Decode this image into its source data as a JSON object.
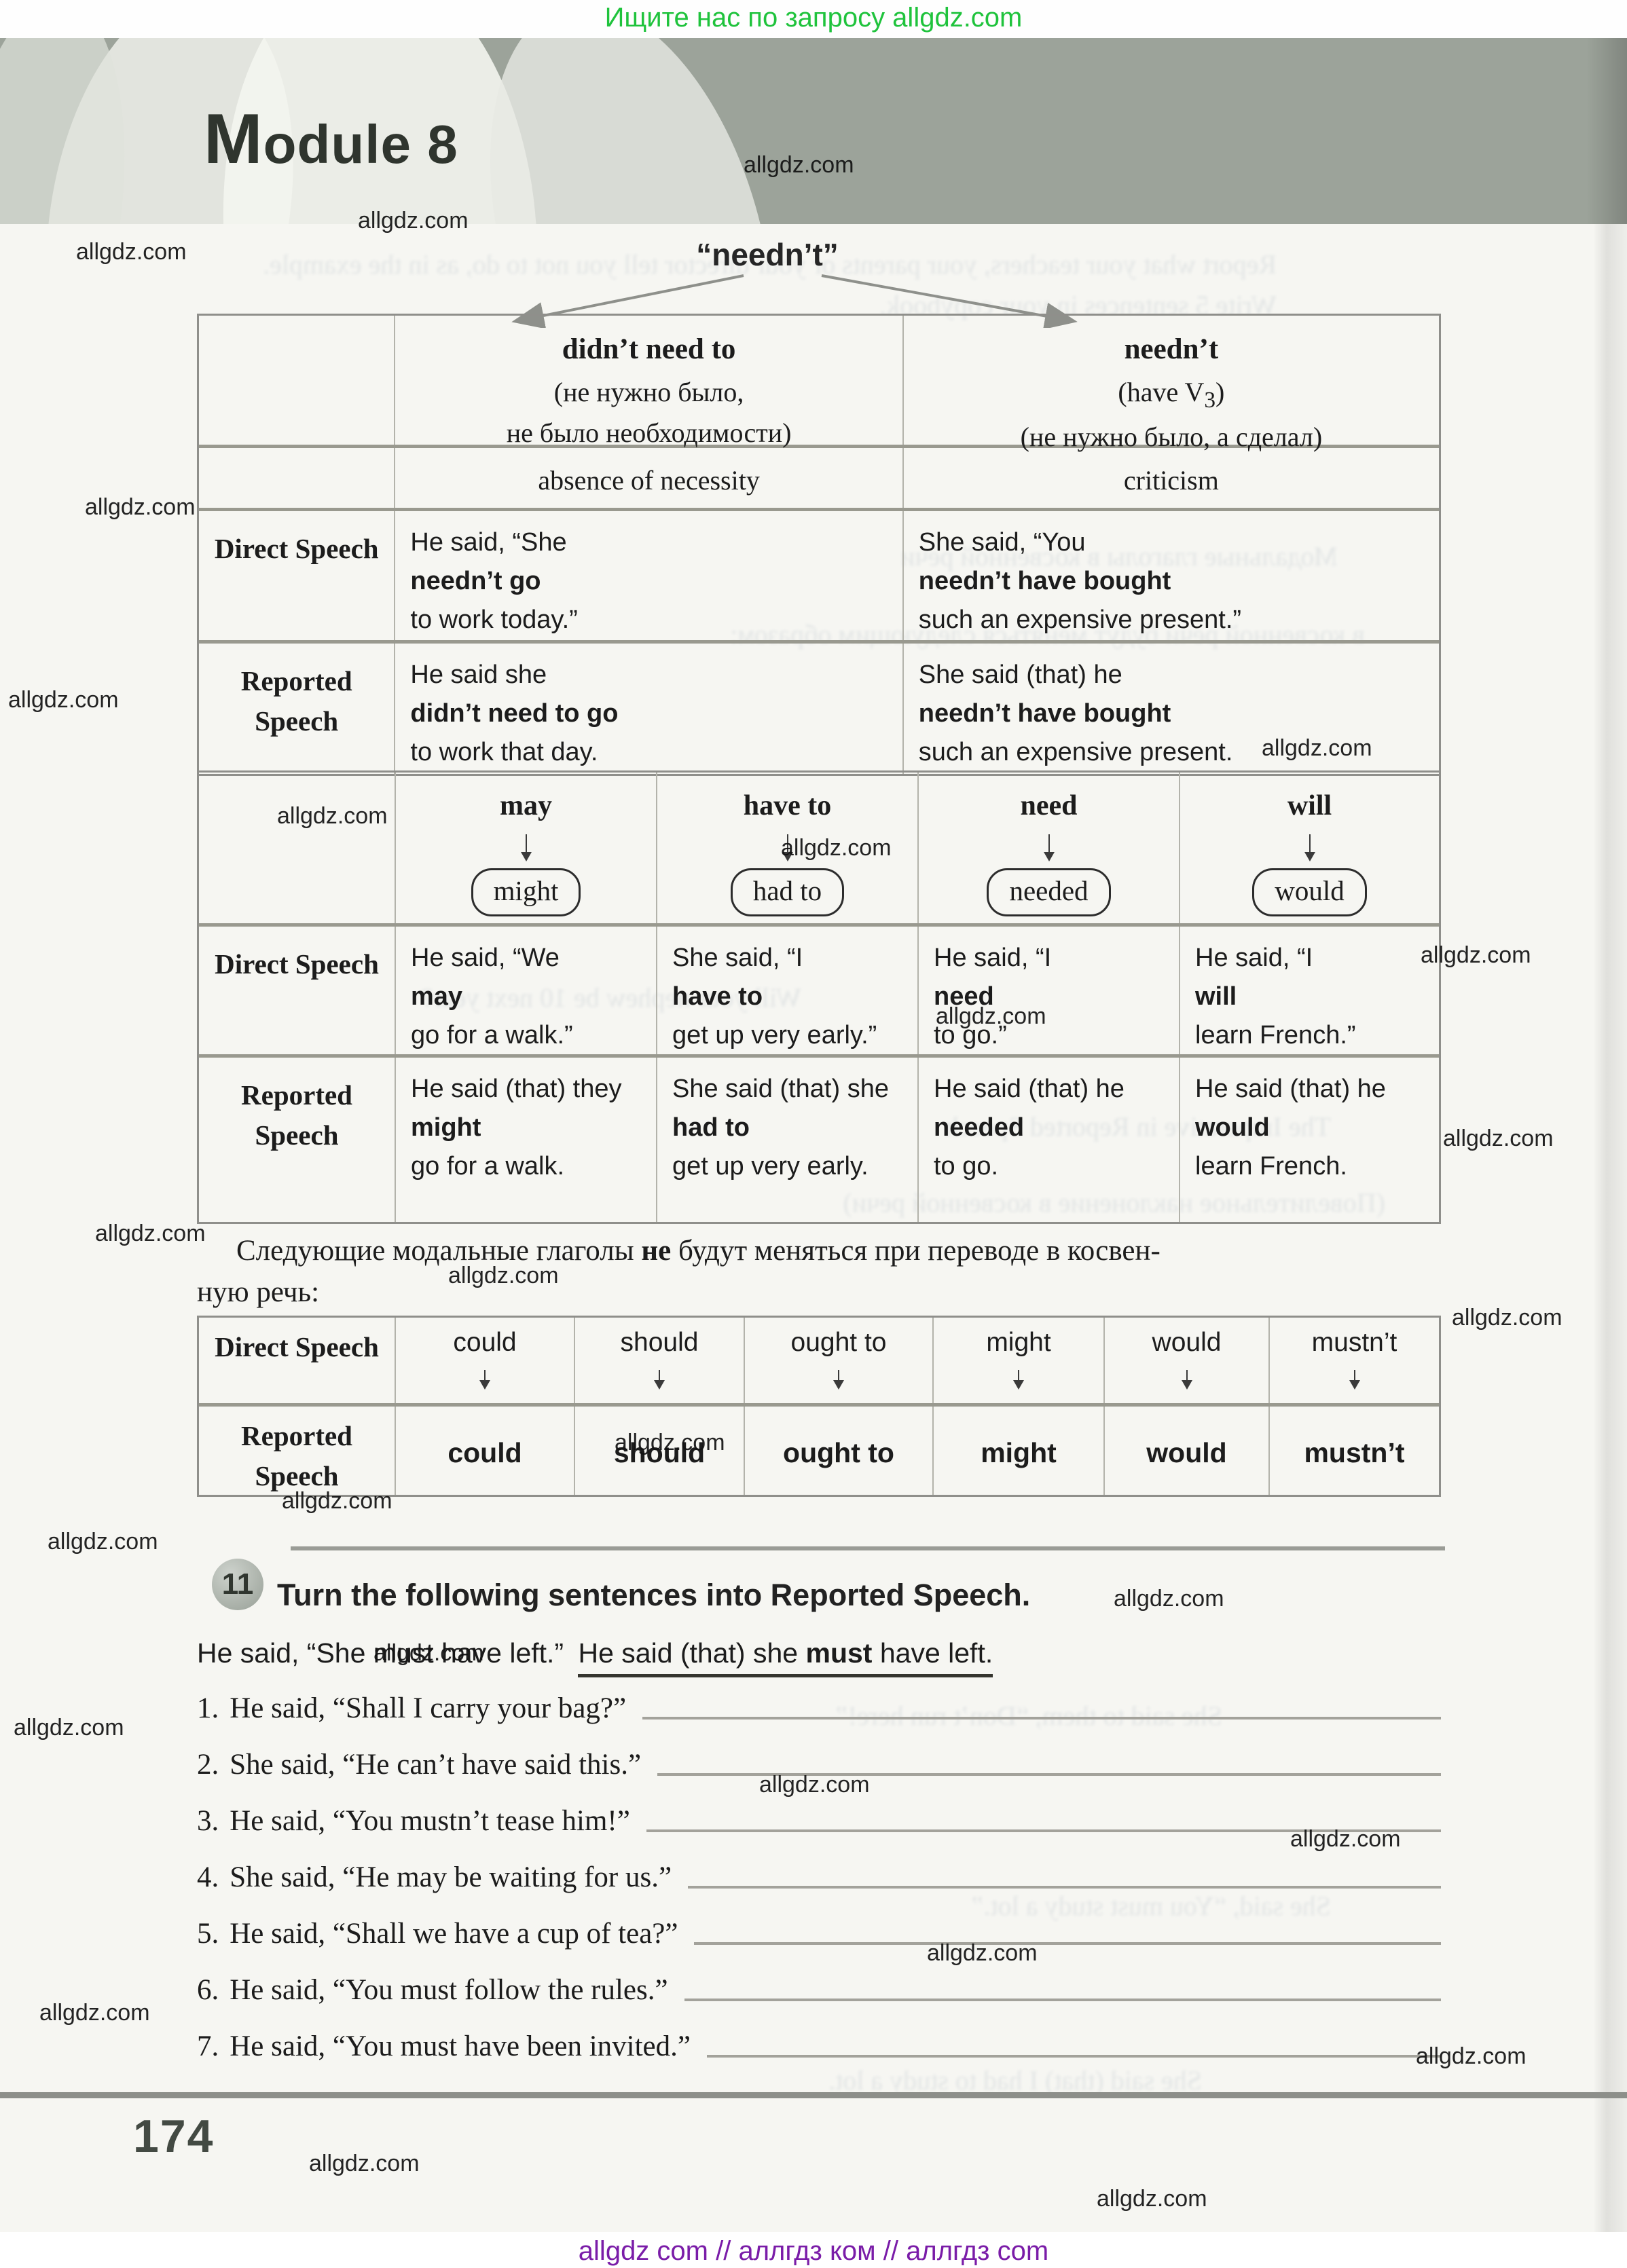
{
  "promo": {
    "top_line": "Ищите нас по запросу allgdz.com"
  },
  "watermark": {
    "label": "allgdz.com"
  },
  "header": {
    "module_title": "Module 8"
  },
  "neednt_diagram": {
    "title": "“needn’t”"
  },
  "table1": {
    "col1": {
      "title": "didn’t need to",
      "note1": "(не нужно было,",
      "note2": "не было необходимости)"
    },
    "col2": {
      "title": "needn’t",
      "have_pre": "(have V",
      "have_sub": "3",
      "have_post": ")",
      "note2": "(не нужно было, а сделал)"
    },
    "usage": {
      "col1": "absence of necessity",
      "col2": "criticism"
    },
    "labels": {
      "direct": "Direct Speech",
      "reported": "Reported Speech"
    },
    "direct": {
      "col1": [
        {
          "t": "He said, “She "
        },
        {
          "t": "needn’t go",
          "b": true
        },
        {
          "t": " to work today.”"
        }
      ],
      "col2": [
        {
          "t": "She said, “You "
        },
        {
          "t": "needn’t have bought",
          "b": true
        },
        {
          "t": " such an expensive present.”"
        }
      ]
    },
    "reported": {
      "col1": [
        {
          "t": "He said she "
        },
        {
          "t": "didn’t need to go",
          "b": true
        },
        {
          "t": " to work that day."
        }
      ],
      "col2": [
        {
          "t": "She said (that) he "
        },
        {
          "t": "needn’t have bought",
          "b": true
        },
        {
          "t": " such an expensive present."
        }
      ]
    }
  },
  "table2": {
    "labels": {
      "direct": "Direct Speech",
      "reported": "Reported Speech"
    },
    "columns": [
      {
        "from": "may",
        "to": "might",
        "direct": [
          {
            "t": "He said, “We "
          },
          {
            "t": "may",
            "b": true
          },
          {
            "t": " go for a walk.”"
          }
        ],
        "reported": [
          {
            "t": "He said (that) they "
          },
          {
            "t": "might",
            "b": true
          },
          {
            "t": " go for a walk."
          }
        ]
      },
      {
        "from": "have to",
        "to": "had to",
        "direct": [
          {
            "t": "She said, “I "
          },
          {
            "t": "have to",
            "b": true
          },
          {
            "t": " get up very early.”"
          }
        ],
        "reported": [
          {
            "t": "She said (that) she "
          },
          {
            "t": "had to",
            "b": true
          },
          {
            "t": " get up very early."
          }
        ]
      },
      {
        "from": "need",
        "to": "needed",
        "direct": [
          {
            "t": "He said, “I "
          },
          {
            "t": "need",
            "b": true
          },
          {
            "t": " to go.”"
          }
        ],
        "reported": [
          {
            "t": "He said (that) he "
          },
          {
            "t": "needed",
            "b": true
          },
          {
            "t": " to go."
          }
        ]
      },
      {
        "from": "will",
        "to": "would",
        "direct": [
          {
            "t": "He said, “I "
          },
          {
            "t": "will",
            "b": true
          },
          {
            "t": " learn French.”"
          }
        ],
        "reported": [
          {
            "t": "He said (that) he "
          },
          {
            "t": "would",
            "b": true
          },
          {
            "t": " learn French."
          }
        ]
      }
    ]
  },
  "note_paragraph": {
    "line1": [
      {
        "t": "Следующие модальные глаголы "
      },
      {
        "t": "не",
        "b": true
      },
      {
        "t": " будут меняться при переводе в косвен-"
      }
    ],
    "line2": "ную речь:"
  },
  "table3": {
    "labels": {
      "direct": "Direct Speech",
      "reported": "Reported Speech"
    },
    "items": [
      {
        "direct": "could",
        "reported": "could"
      },
      {
        "direct": "should",
        "reported": "should"
      },
      {
        "direct": "ought to",
        "reported": "ought to"
      },
      {
        "direct": "might",
        "reported": "might"
      },
      {
        "direct": "would",
        "reported": "would"
      },
      {
        "direct": "mustn’t",
        "reported": "mustn’t"
      }
    ]
  },
  "exercise": {
    "number": "11",
    "title": "Turn the following sentences into Reported Speech.",
    "example": {
      "direct": "He said, “She must have left.”",
      "answer": [
        {
          "t": "He said (that) she "
        },
        {
          "t": "must",
          "b": true
        },
        {
          "t": " have left."
        }
      ]
    },
    "items": [
      {
        "num": "1.",
        "text": "He said, “Shall I carry your bag?”"
      },
      {
        "num": "2.",
        "text": "She said, “He can’t have said this.”"
      },
      {
        "num": "3.",
        "text": "He said, “You mustn’t tease him!”"
      },
      {
        "num": "4.",
        "text": "She said, “He may be waiting for us.”"
      },
      {
        "num": "5.",
        "text": "He said, “Shall we have a cup of tea?”"
      },
      {
        "num": "6.",
        "text": "He said, “You must follow the rules.”"
      },
      {
        "num": "7.",
        "text": "He said, “You must have been invited.”"
      }
    ]
  },
  "footer": {
    "page_number": "174",
    "bottom_line": "allgdz com  //  аллгдз ком  //  аллгдз com"
  },
  "bleedthrough": {
    "fragments": [
      "“What will you have done by …?” they asked.",
      "Report what your teachers, your parents or your director tell you not to do, as in the example. Write 5 sentences in your copybook.",
      "Модальные глаголы в косвенной речи",
      "в косвенной речи будут меняться следующим образом:",
      "Will your nephew be 10 next year?",
      "The Imperative in Reported Speech",
      "(Повелительное наклонение в косвенной речи)",
      "She said to them, “Don’t run here!”",
      "She said, “You must study a lot.”",
      "She said (that) I had to study a lot."
    ]
  }
}
